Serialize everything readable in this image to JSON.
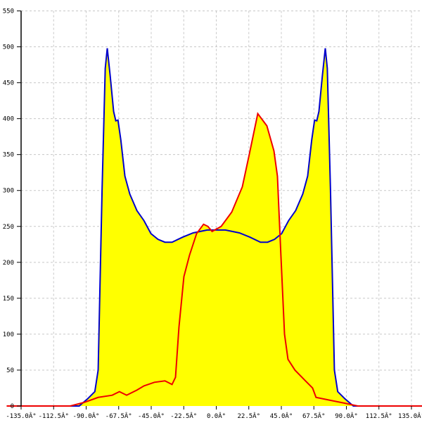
{
  "chart_data": {
    "type": "area",
    "xlim": [
      -135,
      135
    ],
    "ylim": [
      0,
      550
    ],
    "x_ticks": [
      -135,
      -112.5,
      -90,
      -67.5,
      -45,
      -22.5,
      0,
      22.5,
      45,
      67.5,
      90,
      112.5,
      135
    ],
    "x_tick_labels": [
      "-135.0Â°",
      "-112.5Â°",
      "-90.0Â°",
      "-67.5Â°",
      "-45.0Â°",
      "-22.5Â°",
      "0.0Â°",
      "22.5Â°",
      "45.0Â°",
      "67.5Â°",
      "90.0Â°",
      "112.5Â°",
      "135.0Â°"
    ],
    "y_ticks": [
      0,
      50,
      100,
      150,
      200,
      250,
      300,
      350,
      400,
      450,
      500,
      550
    ],
    "y_tick_labels": [
      "0",
      "50",
      "100",
      "150",
      "200",
      "250",
      "300",
      "350",
      "400",
      "450",
      "500",
      "550"
    ],
    "grid": true,
    "fill_color": "#ffff00",
    "series": [
      {
        "color": "#0000cc",
        "points": [
          [
            -135,
            0
          ],
          [
            -94.8,
            0
          ],
          [
            -89,
            10
          ],
          [
            -84,
            20
          ],
          [
            -81.7,
            50
          ],
          [
            -79,
            300
          ],
          [
            -76.8,
            470
          ],
          [
            -75.4,
            498
          ],
          [
            -73.4,
            460
          ],
          [
            -71,
            410
          ],
          [
            -69.5,
            397
          ],
          [
            -68,
            398
          ],
          [
            -66,
            370
          ],
          [
            -63.2,
            320
          ],
          [
            -59.8,
            295
          ],
          [
            -54.9,
            272
          ],
          [
            -50,
            258
          ],
          [
            -45.2,
            240
          ],
          [
            -40.3,
            232
          ],
          [
            -35.5,
            228
          ],
          [
            -30.6,
            228
          ],
          [
            -23.3,
            235
          ],
          [
            -16,
            241
          ],
          [
            -6.3,
            245
          ],
          [
            0,
            245
          ],
          [
            6.3,
            245
          ],
          [
            16,
            241
          ],
          [
            23.3,
            235
          ],
          [
            30.6,
            228
          ],
          [
            35.5,
            228
          ],
          [
            40.3,
            232
          ],
          [
            45.2,
            240
          ],
          [
            50,
            258
          ],
          [
            54.9,
            272
          ],
          [
            59.8,
            295
          ],
          [
            63.2,
            320
          ],
          [
            66,
            370
          ],
          [
            68,
            398
          ],
          [
            69.5,
            397
          ],
          [
            71,
            410
          ],
          [
            73.4,
            460
          ],
          [
            75.4,
            498
          ],
          [
            76.8,
            470
          ],
          [
            79,
            300
          ],
          [
            81.7,
            50
          ],
          [
            84,
            20
          ],
          [
            89,
            10
          ],
          [
            94.8,
            0
          ],
          [
            135,
            0
          ]
        ]
      },
      {
        "color": "#ee0000",
        "points": [
          [
            -145,
            0
          ],
          [
            -101,
            0
          ],
          [
            -91.4,
            5
          ],
          [
            -81.7,
            12
          ],
          [
            -72,
            15
          ],
          [
            -67,
            20
          ],
          [
            -62,
            15
          ],
          [
            -55,
            22
          ],
          [
            -50,
            28
          ],
          [
            -42.8,
            33
          ],
          [
            -35.5,
            35
          ],
          [
            -30.6,
            30
          ],
          [
            -28.2,
            40
          ],
          [
            -25.8,
            110
          ],
          [
            -22.4,
            180
          ],
          [
            -18.5,
            210
          ],
          [
            -13.6,
            240
          ],
          [
            -8.8,
            253
          ],
          [
            -5.8,
            250
          ],
          [
            -2.9,
            243
          ],
          [
            3.4,
            250
          ],
          [
            10.7,
            270
          ],
          [
            18,
            305
          ],
          [
            22.8,
            350
          ],
          [
            28.7,
            407
          ],
          [
            35,
            390
          ],
          [
            39.9,
            355
          ],
          [
            42.3,
            320
          ],
          [
            44.7,
            210
          ],
          [
            47.2,
            100
          ],
          [
            49.6,
            65
          ],
          [
            54.4,
            50
          ],
          [
            61.7,
            35
          ],
          [
            66.6,
            25
          ],
          [
            69,
            12
          ],
          [
            78.8,
            8
          ],
          [
            88.5,
            4
          ],
          [
            98,
            0
          ],
          [
            145,
            0
          ]
        ]
      }
    ]
  }
}
